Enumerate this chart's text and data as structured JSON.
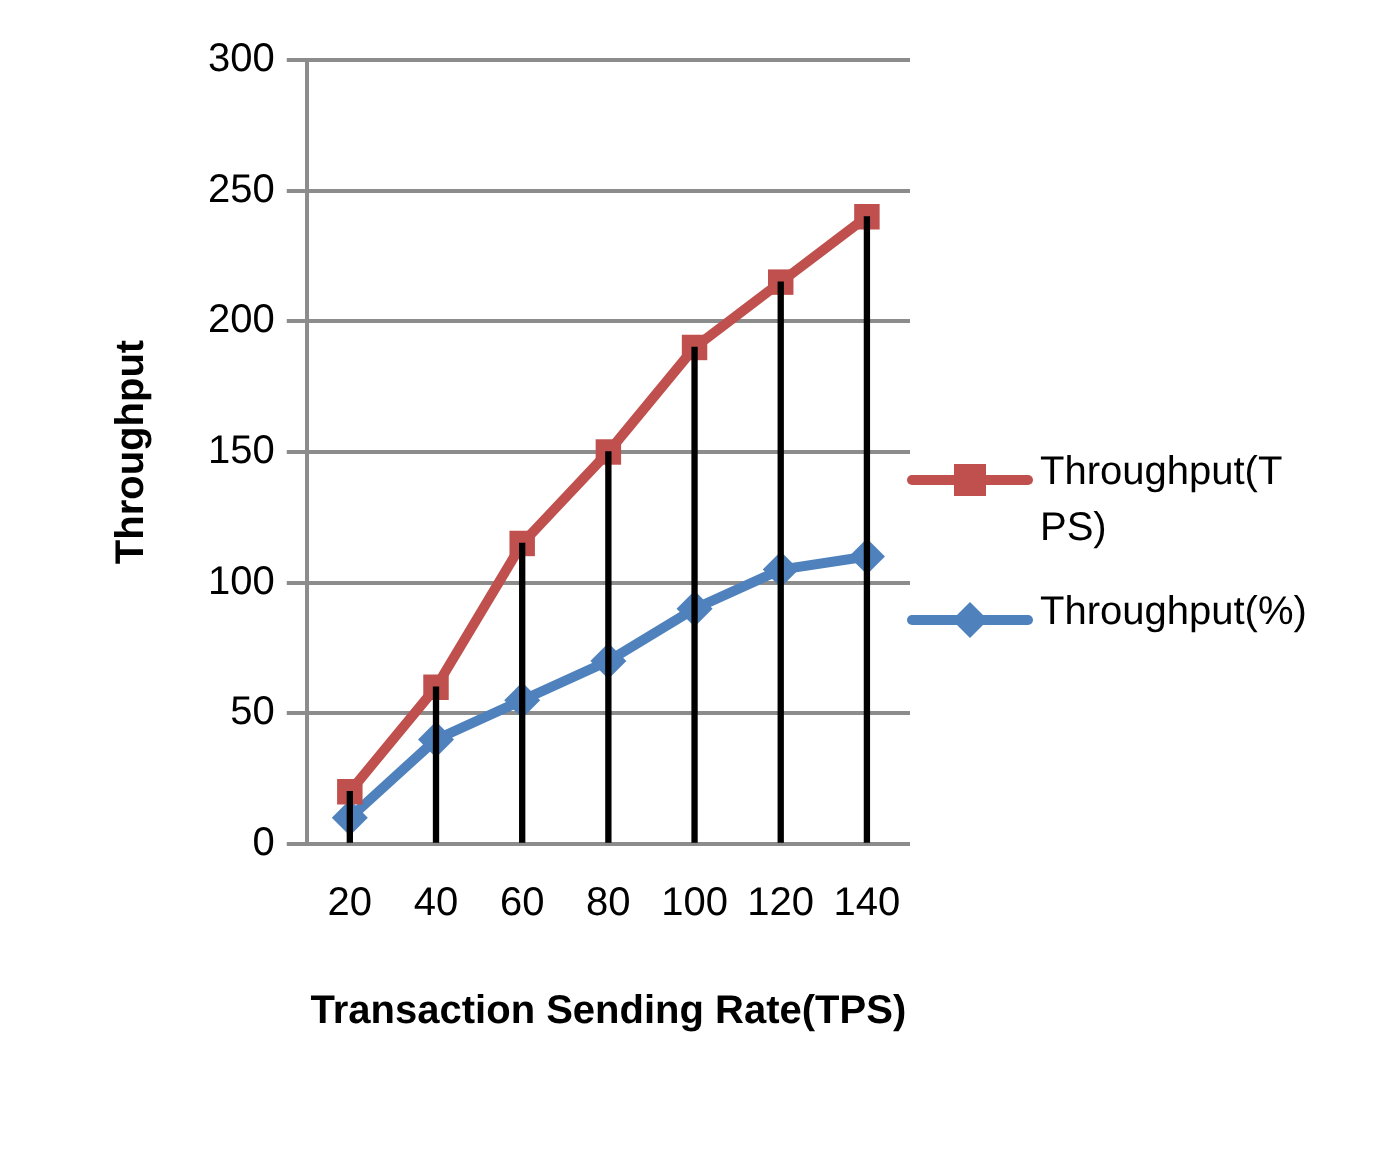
{
  "chart_data": {
    "type": "line",
    "xlabel": "Transaction Sending Rate(TPS)",
    "ylabel": "Throughput",
    "categories": [
      "20",
      "40",
      "60",
      "80",
      "100",
      "120",
      "140"
    ],
    "series": [
      {
        "name": "Throughput(TPS)",
        "color": "#c0504d",
        "marker": "square",
        "values": [
          20,
          60,
          115,
          150,
          190,
          215,
          240
        ]
      },
      {
        "type": "bar",
        "color": "#000000",
        "values": [
          20,
          60,
          115,
          150,
          190,
          215,
          240
        ]
      },
      {
        "name": "Throughput(%)",
        "color": "#4f81bd",
        "marker": "diamond",
        "values": [
          10,
          40,
          55,
          70,
          90,
          105,
          110
        ]
      }
    ],
    "ylim": [
      0,
      300
    ],
    "yticks": [
      0,
      50,
      100,
      150,
      200,
      250,
      300
    ],
    "grid": "y",
    "legend": "right"
  }
}
